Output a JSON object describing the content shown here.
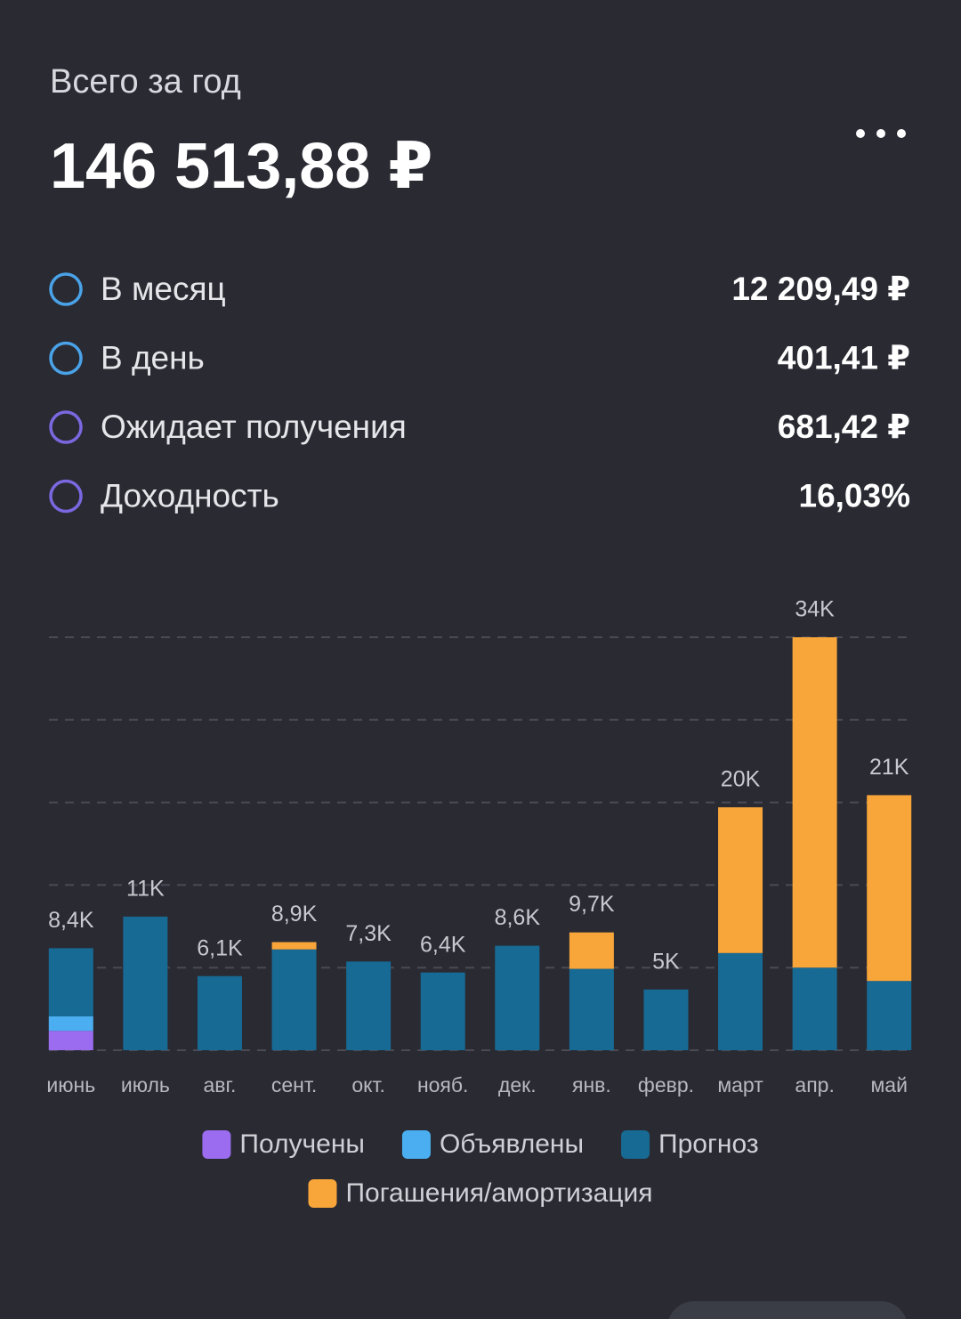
{
  "header": {
    "title": "Всего за год",
    "total": "146 513,88 ₽"
  },
  "stats": [
    {
      "label": "В месяц",
      "value": "12 209,49 ₽",
      "color": "#4aa3e8"
    },
    {
      "label": "В день",
      "value": "401,41 ₽",
      "color": "#4aa3e8"
    },
    {
      "label": "Ожидает получения",
      "value": "681,42 ₽",
      "color": "#7b68e0"
    },
    {
      "label": "Доходность",
      "value": "16,03%",
      "color": "#7b68e0"
    }
  ],
  "chart_data": {
    "type": "stacked_bar",
    "categories": [
      "июнь",
      "июль",
      "авг.",
      "сент.",
      "окт.",
      "нояб.",
      "дек.",
      "янв.",
      "февр.",
      "март",
      "апр.",
      "май"
    ],
    "series": [
      {
        "name": "Получены",
        "color": "#9b6cf0",
        "values": [
          1600,
          0,
          0,
          0,
          0,
          0,
          0,
          0,
          0,
          0,
          0,
          0
        ]
      },
      {
        "name": "Объявлены",
        "color": "#4aaef0",
        "values": [
          1200,
          0,
          0,
          0,
          0,
          0,
          0,
          0,
          0,
          0,
          0,
          0
        ]
      },
      {
        "name": "Прогноз",
        "color": "#176a94",
        "values": [
          5600,
          11000,
          6100,
          8300,
          7300,
          6400,
          8600,
          6700,
          5000,
          8000,
          6800,
          5700
        ]
      },
      {
        "name": "Погашения/амортизация",
        "color": "#f8a53a",
        "values": [
          0,
          0,
          0,
          600,
          0,
          0,
          0,
          3000,
          0,
          12000,
          27200,
          15300
        ]
      }
    ],
    "totals": {
      "values": [
        8400,
        11000,
        6100,
        8900,
        7300,
        6400,
        8600,
        9700,
        5000,
        20000,
        34000,
        21000
      ],
      "value_labels": [
        "8,4K",
        "11K",
        "6,1K",
        "8,9K",
        "7,3K",
        "6,4K",
        "8,6K",
        "9,7K",
        "5K",
        "20K",
        "34K",
        "21K"
      ]
    },
    "ylim": [
      0,
      34000
    ],
    "yticks": [
      0,
      6800,
      13600,
      20400,
      27200,
      34000
    ],
    "grid": true
  }
}
